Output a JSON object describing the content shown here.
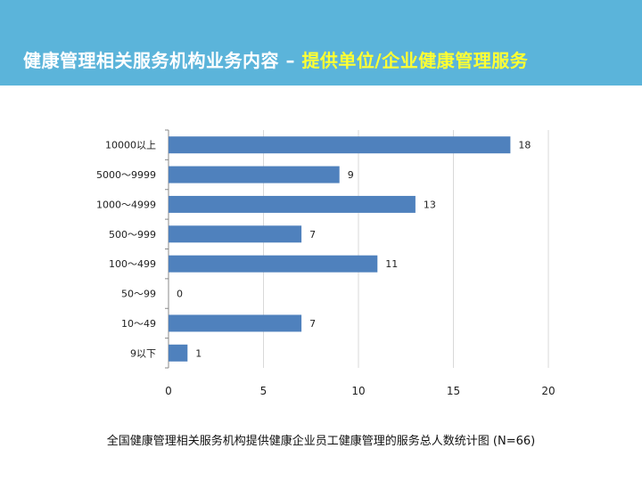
{
  "header": {
    "title_main": "健康管理相关服务机构业务内容",
    "separator": " – ",
    "title_highlight": "提供单位/企业健康管理服务",
    "bg_color": "#5bb4da",
    "highlight_color": "#ffff33"
  },
  "chart_data": {
    "type": "bar",
    "orientation": "horizontal",
    "categories": [
      "10000以上",
      "5000～9999",
      "1000～4999",
      "500～999",
      "100～499",
      "50～99",
      "10～49",
      "9以下"
    ],
    "values": [
      18,
      9,
      13,
      7,
      11,
      0,
      7,
      1
    ],
    "xlim": [
      0,
      20
    ],
    "x_ticks": [
      0,
      5,
      10,
      15,
      20
    ],
    "grid": "vertical",
    "bar_color": "#4f81bd",
    "data_labels": true
  },
  "caption": "全国健康管理相关服务机构提供健康企业员工健康管理的服务总人数统计图 (N=66)"
}
